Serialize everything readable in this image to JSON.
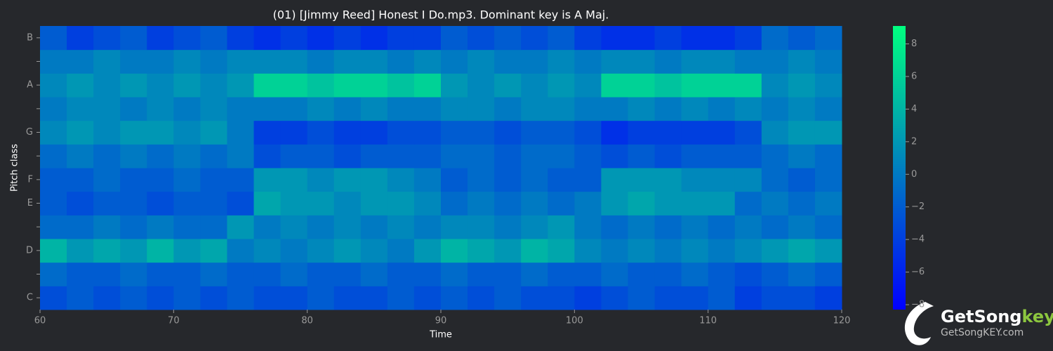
{
  "chart_data": {
    "type": "heatmap",
    "title": "(01) [Jimmy Reed] Honest I Do.mp3. Dominant key is A Maj.",
    "x_label": "Time",
    "y_label": "Pitch class",
    "x": [
      60,
      62,
      64,
      66,
      68,
      70,
      72,
      74,
      76,
      78,
      80,
      82,
      84,
      86,
      88,
      90,
      92,
      94,
      96,
      98,
      100,
      102,
      104,
      106,
      108,
      110,
      112,
      114,
      116,
      118
    ],
    "xlim": [
      60,
      120
    ],
    "xticks": [
      60,
      70,
      80,
      90,
      100,
      110,
      120
    ],
    "categories": [
      "C",
      null,
      "D",
      null,
      "E",
      "F",
      null,
      "G",
      null,
      "A",
      null,
      "B"
    ],
    "colormap": "winter",
    "clim": [
      -8.3,
      9.1
    ],
    "colorbar_ticks": [
      {
        "value": -8,
        "label": "−8"
      },
      {
        "value": -6,
        "label": "−6"
      },
      {
        "value": -4,
        "label": "−4"
      },
      {
        "value": -2,
        "label": "−2"
      },
      0,
      2,
      4,
      6,
      8
    ],
    "values": [
      [
        -3,
        -2,
        -3,
        -2,
        -3,
        -2,
        -3,
        -2,
        -3,
        -3,
        -2,
        -3,
        -3,
        -2,
        -3,
        -2,
        -3,
        -2,
        -3,
        -3,
        -4,
        -3,
        -2,
        -3,
        -3,
        -2,
        -4,
        -3,
        -3,
        -4
      ],
      [
        -1,
        -2,
        -2,
        -1,
        -2,
        -2,
        -1,
        -2,
        -2,
        -1,
        -2,
        -2,
        -1,
        -2,
        -2,
        -1,
        -2,
        -2,
        -1,
        -2,
        -2,
        -1,
        -2,
        -2,
        -1,
        -2,
        -3,
        -2,
        -1,
        -2
      ],
      [
        4,
        2,
        3,
        2,
        4,
        2,
        3,
        0,
        1,
        0,
        1,
        2,
        1,
        0,
        2,
        4,
        3,
        2,
        4,
        3,
        1,
        0,
        1,
        0,
        1,
        0,
        1,
        2,
        3,
        2
      ],
      [
        -1,
        -1,
        0,
        -1,
        0,
        -1,
        -1,
        2,
        0,
        1,
        0,
        1,
        0,
        1,
        0,
        1,
        1,
        0,
        1,
        2,
        0,
        -1,
        0,
        -1,
        0,
        -1,
        0,
        -1,
        0,
        -1
      ],
      [
        -2,
        -3,
        -2,
        -2,
        -3,
        -2,
        -2,
        -3,
        3,
        2,
        2,
        1,
        2,
        2,
        1,
        -1,
        0,
        -1,
        0,
        -1,
        0,
        2,
        3,
        2,
        2,
        2,
        -1,
        0,
        -1,
        0
      ],
      [
        -2,
        -2,
        -1,
        -2,
        -2,
        -1,
        -2,
        -2,
        2,
        2,
        1,
        2,
        2,
        1,
        0,
        -2,
        -1,
        -2,
        -1,
        -2,
        -2,
        2,
        2,
        2,
        1,
        1,
        1,
        -1,
        -2,
        -1
      ],
      [
        -1,
        0,
        -1,
        0,
        -1,
        0,
        -1,
        0,
        -3,
        -2,
        -2,
        -3,
        -2,
        -2,
        -2,
        -1,
        -1,
        -2,
        -1,
        -1,
        -2,
        -3,
        -2,
        -3,
        -2,
        -2,
        -2,
        -1,
        0,
        -1
      ],
      [
        1,
        2,
        1,
        2,
        2,
        1,
        2,
        0,
        -4,
        -4,
        -3,
        -4,
        -4,
        -3,
        -3,
        -2,
        -2,
        -3,
        -2,
        -2,
        -3,
        -5,
        -4,
        -4,
        -4,
        -4,
        -3,
        1,
        2,
        2
      ],
      [
        0,
        1,
        1,
        0,
        1,
        0,
        1,
        0,
        0,
        0,
        1,
        0,
        1,
        0,
        0,
        1,
        1,
        0,
        1,
        1,
        0,
        0,
        1,
        0,
        1,
        0,
        1,
        0,
        1,
        0
      ],
      [
        1,
        2,
        1,
        2,
        1,
        2,
        1,
        2,
        6,
        6,
        5,
        6,
        6,
        5,
        6,
        2,
        1,
        2,
        1,
        2,
        1,
        6,
        6,
        5,
        6,
        6,
        6,
        1,
        2,
        1
      ],
      [
        0,
        0,
        1,
        0,
        0,
        1,
        0,
        1,
        1,
        1,
        0,
        1,
        1,
        0,
        1,
        0,
        1,
        0,
        0,
        1,
        0,
        1,
        1,
        0,
        1,
        1,
        0,
        0,
        1,
        0
      ],
      [
        -2,
        -4,
        -3,
        -2,
        -4,
        -3,
        -2,
        -4,
        -5,
        -4,
        -5,
        -4,
        -5,
        -4,
        -4,
        -2,
        -3,
        -2,
        -3,
        -2,
        -4,
        -5,
        -5,
        -4,
        -5,
        -5,
        -4,
        -1,
        -2,
        -1
      ]
    ]
  },
  "logo": {
    "name_main": "GetSong",
    "name_accent": "key",
    "url": "GetSongKEY.com"
  }
}
